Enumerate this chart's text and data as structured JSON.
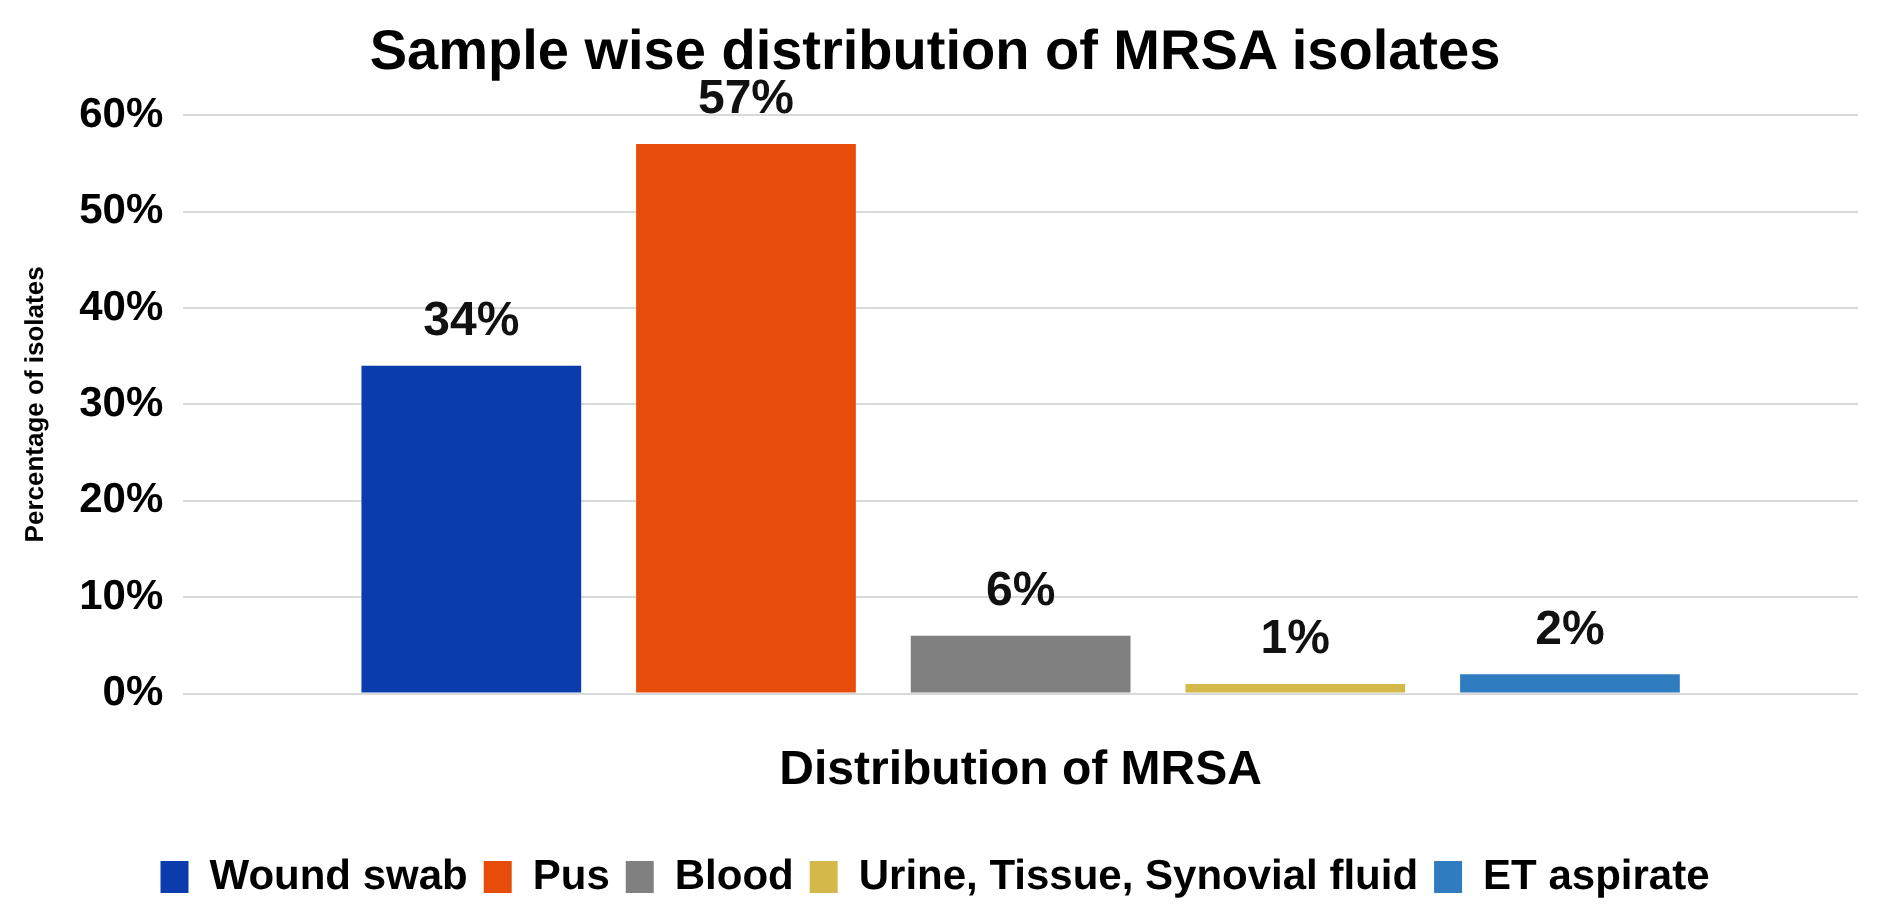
{
  "chart_data": {
    "type": "bar",
    "title": "Sample wise distribution of MRSA isolates",
    "xlabel": "Distribution of MRSA",
    "ylabel": "Percentage of isolates",
    "categories": [
      null
    ],
    "series": [
      {
        "name": "Wound swab",
        "color": "#0a3cae",
        "values": [
          34
        ],
        "value_labels": [
          "34%"
        ]
      },
      {
        "name": "Pus",
        "color": "#e84c0a",
        "values": [
          57
        ],
        "value_labels": [
          "57%"
        ]
      },
      {
        "name": "Blood",
        "color": "#808080",
        "values": [
          6
        ],
        "value_labels": [
          "6%"
        ]
      },
      {
        "name": "Urine, Tissue, Synovial fluid",
        "color": "#d4b94a",
        "values": [
          1
        ],
        "value_labels": [
          "1%"
        ]
      },
      {
        "name": "ET aspirate",
        "color": "#2f7cc0",
        "values": [
          2
        ],
        "value_labels": [
          "2%"
        ]
      }
    ],
    "ylim": [
      0,
      60
    ],
    "yticks": [
      {
        "value": 0,
        "label": "0%"
      },
      {
        "value": 10,
        "label": "10%"
      },
      {
        "value": 20,
        "label": "20%"
      },
      {
        "value": 30,
        "label": "30%"
      },
      {
        "value": 40,
        "label": "40%"
      },
      {
        "value": 50,
        "label": "50%"
      },
      {
        "value": 60,
        "label": "60%"
      }
    ],
    "grid": "y",
    "legend": "bottom"
  }
}
